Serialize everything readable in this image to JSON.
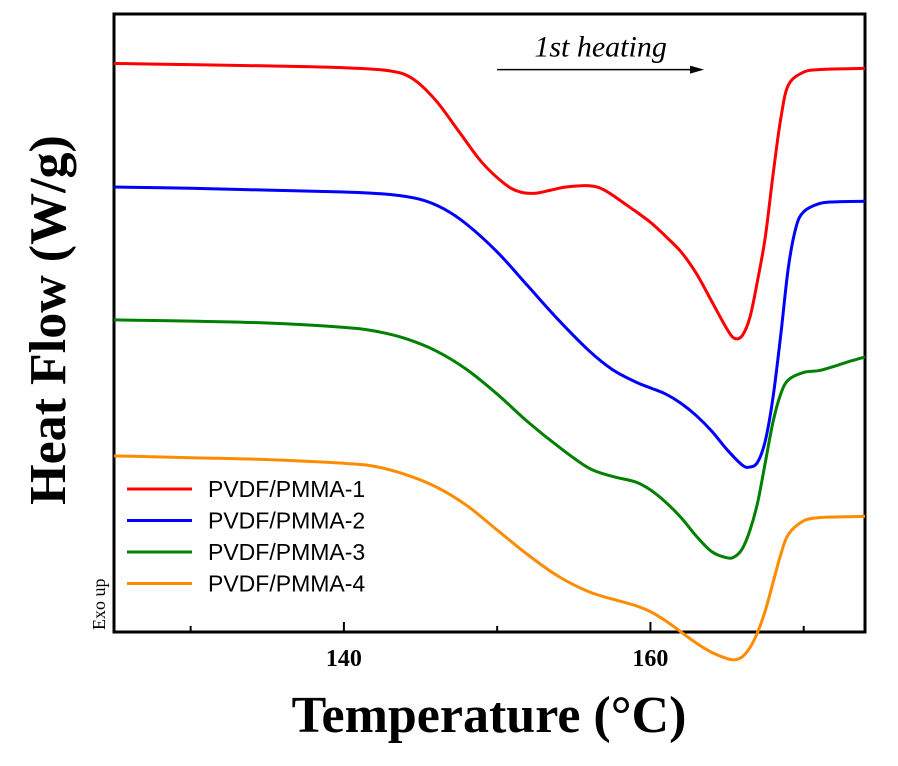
{
  "chart_data": {
    "type": "line",
    "title": "",
    "xlabel": "Temperature (°C)",
    "ylabel": "Heat Flow (W/g)",
    "xlim": [
      125,
      174
    ],
    "ylim": [
      0,
      100
    ],
    "xticks": [
      140,
      160
    ],
    "xticks_minor": [
      130,
      150,
      170
    ],
    "yticks": [],
    "grid": false,
    "legend_position": "bottom-left",
    "annotation": {
      "text": "1st heating",
      "arrow_from": 150,
      "arrow_to": 163.5,
      "y": 91
    },
    "side_note": "Exo up",
    "series": [
      {
        "name": "PVDF/PMMA-1",
        "color": "#ff0000",
        "points": [
          [
            125,
            92
          ],
          [
            130,
            91.8
          ],
          [
            135,
            91.6
          ],
          [
            140,
            91.3
          ],
          [
            143,
            90.8
          ],
          [
            144.5,
            89.5
          ],
          [
            146,
            86
          ],
          [
            147.5,
            81
          ],
          [
            149,
            76
          ],
          [
            150.5,
            72.5
          ],
          [
            151.5,
            71.2
          ],
          [
            152.5,
            71
          ],
          [
            153.5,
            71.5
          ],
          [
            154.5,
            72
          ],
          [
            156,
            72.2
          ],
          [
            157,
            71.5
          ],
          [
            158.5,
            69
          ],
          [
            160,
            66.3
          ],
          [
            161,
            64
          ],
          [
            162,
            61.5
          ],
          [
            163,
            58
          ],
          [
            164,
            53.5
          ],
          [
            165,
            49
          ],
          [
            165.5,
            47.5
          ],
          [
            166,
            48
          ],
          [
            166.5,
            51
          ],
          [
            167,
            57
          ],
          [
            167.5,
            64
          ],
          [
            168,
            74
          ],
          [
            168.5,
            83
          ],
          [
            169,
            88.5
          ],
          [
            170,
            90.6
          ],
          [
            171,
            91
          ],
          [
            172,
            91.1
          ],
          [
            174,
            91.2
          ]
        ]
      },
      {
        "name": "PVDF/PMMA-2",
        "color": "#0000ff",
        "points": [
          [
            125,
            72
          ],
          [
            130,
            71.8
          ],
          [
            135,
            71.5
          ],
          [
            140,
            71.2
          ],
          [
            143,
            70.8
          ],
          [
            145,
            70
          ],
          [
            146.5,
            68.5
          ],
          [
            148,
            66
          ],
          [
            150,
            61.5
          ],
          [
            152,
            56
          ],
          [
            154,
            50.5
          ],
          [
            156,
            45.5
          ],
          [
            157.5,
            42.5
          ],
          [
            159,
            40.5
          ],
          [
            160,
            39.5
          ],
          [
            161,
            38.5
          ],
          [
            162,
            37
          ],
          [
            163,
            35
          ],
          [
            164,
            32.5
          ],
          [
            165,
            29.5
          ],
          [
            166,
            27
          ],
          [
            166.5,
            26.7
          ],
          [
            167,
            27.5
          ],
          [
            167.5,
            31
          ],
          [
            168,
            38
          ],
          [
            168.5,
            48
          ],
          [
            169,
            59
          ],
          [
            169.5,
            65.5
          ],
          [
            170,
            68
          ],
          [
            171,
            69.3
          ],
          [
            172,
            69.6
          ],
          [
            174,
            69.7
          ]
        ]
      },
      {
        "name": "PVDF/PMMA-3",
        "color": "#008000",
        "points": [
          [
            125,
            50.5
          ],
          [
            130,
            50.3
          ],
          [
            135,
            50
          ],
          [
            140,
            49.3
          ],
          [
            142,
            48.7
          ],
          [
            144,
            47.5
          ],
          [
            146,
            45.5
          ],
          [
            148,
            42.5
          ],
          [
            150,
            38.5
          ],
          [
            152,
            34
          ],
          [
            154,
            30
          ],
          [
            156,
            26.5
          ],
          [
            157.5,
            25.2
          ],
          [
            159,
            24.3
          ],
          [
            160,
            23
          ],
          [
            161,
            21
          ],
          [
            162,
            18.5
          ],
          [
            163,
            15.5
          ],
          [
            164,
            13
          ],
          [
            165,
            12
          ],
          [
            165.5,
            12.2
          ],
          [
            166,
            13.5
          ],
          [
            166.5,
            16.5
          ],
          [
            167,
            21
          ],
          [
            167.5,
            27.5
          ],
          [
            168,
            34
          ],
          [
            168.5,
            38.5
          ],
          [
            169,
            40.8
          ],
          [
            170,
            42
          ],
          [
            171,
            42.3
          ],
          [
            172,
            43
          ],
          [
            173,
            43.8
          ],
          [
            174,
            44.5
          ]
        ]
      },
      {
        "name": "PVDF/PMMA-4",
        "color": "#ff8c00",
        "points": [
          [
            125,
            28.5
          ],
          [
            130,
            28.2
          ],
          [
            135,
            27.9
          ],
          [
            140,
            27.3
          ],
          [
            142,
            26.8
          ],
          [
            144,
            25.5
          ],
          [
            146,
            23.5
          ],
          [
            148,
            20.5
          ],
          [
            150,
            16.5
          ],
          [
            152,
            12.5
          ],
          [
            154,
            9
          ],
          [
            156,
            6.5
          ],
          [
            158,
            5
          ],
          [
            159,
            4.3
          ],
          [
            160,
            3.3
          ],
          [
            161,
            1.8
          ],
          [
            162,
            0
          ],
          [
            163,
            -1.8
          ],
          [
            164,
            -3.3
          ],
          [
            165,
            -4.3
          ],
          [
            165.5,
            -4.5
          ],
          [
            166,
            -4
          ],
          [
            166.5,
            -2.5
          ],
          [
            167,
            0
          ],
          [
            167.5,
            3.5
          ],
          [
            168,
            8
          ],
          [
            168.5,
            12.5
          ],
          [
            169,
            15.8
          ],
          [
            170,
            18
          ],
          [
            171,
            18.5
          ],
          [
            172,
            18.6
          ],
          [
            174,
            18.7
          ]
        ]
      }
    ]
  }
}
